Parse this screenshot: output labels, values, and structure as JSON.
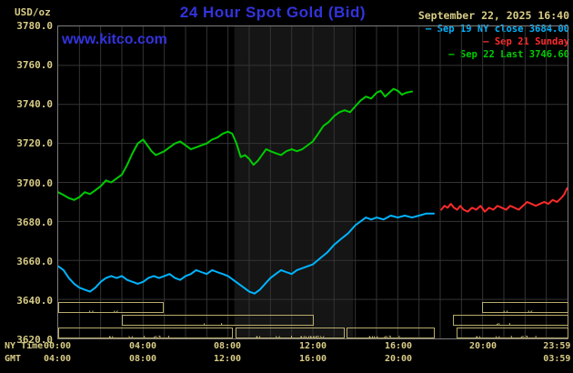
{
  "header": {
    "unit_label": "USD/oz",
    "title": "24 Hour Spot Gold (Bid)",
    "datetime": "September 22, 2025 16:40",
    "watermark": "www.kitco.com"
  },
  "legend": {
    "items": [
      {
        "label": "Sep 19 NY close 3684.00",
        "color": "#00b4ff"
      },
      {
        "label": "Sep 21 Sunday",
        "color": "#ff2b2b"
      },
      {
        "label": "Sep 22 Last 3746.60",
        "color": "#00cc00"
      }
    ]
  },
  "axes": {
    "ny_time_label": "NY Time",
    "gmt_label": "GMT",
    "y_labels": [
      "3780.0",
      "3760.0",
      "3740.0",
      "3720.0",
      "3700.0",
      "3680.0",
      "3660.0",
      "3640.0",
      "3620.0"
    ],
    "tick_hours": [
      0,
      4,
      8,
      12,
      16,
      20,
      23.983
    ],
    "ny_ticks": [
      "00:00",
      "04:00",
      "08:00",
      "12:00",
      "16:00",
      "20:00",
      "23:59"
    ],
    "gmt_ticks": [
      "04:00",
      "08:00",
      "12:00",
      "16:00",
      "20:00",
      "",
      "03:59"
    ]
  },
  "sessions": [
    {
      "row": 0,
      "label": "Hong Kong",
      "start": 0,
      "end": 5.0
    },
    {
      "row": 0,
      "label": "Hong Kong",
      "start": 19.9,
      "end": 24
    },
    {
      "row": 1,
      "label": "London",
      "start": 3.0,
      "end": 12.05
    },
    {
      "row": 1,
      "label": "Sydney",
      "start": 18.55,
      "end": 24
    },
    {
      "row": 2,
      "label": "New York Globex",
      "start": 0,
      "end": 8.25
    },
    {
      "row": 2,
      "label": "New York NYMEX",
      "start": 8.33,
      "end": 13.5
    },
    {
      "row": 2,
      "label": "NY Globex",
      "start": 13.55,
      "end": 17.75
    },
    {
      "row": 2,
      "label": "New York Globex",
      "start": 18.7,
      "end": 24
    }
  ],
  "colors": {
    "background": "#000000",
    "title_blue": "#3333dd",
    "axis_tan": "#d8cc86",
    "tan_dim": "#b8ab6a",
    "grid": "#343434",
    "plot_border": "#7d7d7d",
    "band": "#151515"
  },
  "chart_data": {
    "type": "line",
    "title": "24 Hour Spot Gold (Bid)",
    "ylabel": "USD/oz",
    "ylim": [
      3620,
      3780
    ],
    "xlim_hours": [
      0,
      24
    ],
    "grid": true,
    "legend_position": "top-right",
    "nymex_band_hours": [
      8.3,
      13.9
    ],
    "series": [
      {
        "name": "Sep 19 NY close",
        "close_value": 3684.0,
        "color": "#00b4ff",
        "points": [
          [
            0,
            3657
          ],
          [
            0.25,
            3655
          ],
          [
            0.5,
            3651
          ],
          [
            0.75,
            3648
          ],
          [
            1,
            3646
          ],
          [
            1.25,
            3645
          ],
          [
            1.5,
            3644
          ],
          [
            1.75,
            3646
          ],
          [
            2,
            3649
          ],
          [
            2.25,
            3651
          ],
          [
            2.5,
            3652
          ],
          [
            2.75,
            3651
          ],
          [
            3,
            3652
          ],
          [
            3.25,
            3650
          ],
          [
            3.5,
            3649
          ],
          [
            3.75,
            3648
          ],
          [
            4,
            3649
          ],
          [
            4.25,
            3651
          ],
          [
            4.5,
            3652
          ],
          [
            4.75,
            3651
          ],
          [
            5,
            3652
          ],
          [
            5.25,
            3653
          ],
          [
            5.5,
            3651
          ],
          [
            5.75,
            3650
          ],
          [
            6,
            3652
          ],
          [
            6.25,
            3653
          ],
          [
            6.5,
            3655
          ],
          [
            6.75,
            3654
          ],
          [
            7,
            3653
          ],
          [
            7.25,
            3655
          ],
          [
            7.5,
            3654
          ],
          [
            7.75,
            3653
          ],
          [
            8,
            3652
          ],
          [
            8.25,
            3650
          ],
          [
            8.5,
            3648
          ],
          [
            8.75,
            3646
          ],
          [
            9,
            3644
          ],
          [
            9.25,
            3643
          ],
          [
            9.5,
            3645
          ],
          [
            9.75,
            3648
          ],
          [
            10,
            3651
          ],
          [
            10.25,
            3653
          ],
          [
            10.5,
            3655
          ],
          [
            10.75,
            3654
          ],
          [
            11,
            3653
          ],
          [
            11.25,
            3655
          ],
          [
            11.5,
            3656
          ],
          [
            11.75,
            3657
          ],
          [
            12,
            3658
          ],
          [
            12.33,
            3661
          ],
          [
            12.67,
            3664
          ],
          [
            13,
            3668
          ],
          [
            13.33,
            3671
          ],
          [
            13.67,
            3674
          ],
          [
            14,
            3678
          ],
          [
            14.25,
            3680
          ],
          [
            14.5,
            3682
          ],
          [
            14.75,
            3681
          ],
          [
            15,
            3682
          ],
          [
            15.33,
            3681
          ],
          [
            15.67,
            3683
          ],
          [
            16,
            3682
          ],
          [
            16.33,
            3683
          ],
          [
            16.67,
            3682
          ],
          [
            17,
            3683
          ],
          [
            17.33,
            3684
          ],
          [
            17.7,
            3684
          ]
        ]
      },
      {
        "name": "Sep 21 Sunday",
        "color": "#ff2b2b",
        "points": [
          [
            18.05,
            3686
          ],
          [
            18.2,
            3688
          ],
          [
            18.35,
            3687
          ],
          [
            18.5,
            3689
          ],
          [
            18.65,
            3687
          ],
          [
            18.8,
            3686
          ],
          [
            18.95,
            3688
          ],
          [
            19.1,
            3686
          ],
          [
            19.3,
            3685
          ],
          [
            19.5,
            3687
          ],
          [
            19.7,
            3686
          ],
          [
            19.9,
            3688
          ],
          [
            20.1,
            3685
          ],
          [
            20.3,
            3687
          ],
          [
            20.5,
            3686
          ],
          [
            20.7,
            3688
          ],
          [
            20.9,
            3687
          ],
          [
            21.1,
            3686
          ],
          [
            21.3,
            3688
          ],
          [
            21.5,
            3687
          ],
          [
            21.7,
            3686
          ],
          [
            21.9,
            3688
          ],
          [
            22.1,
            3690
          ],
          [
            22.3,
            3689
          ],
          [
            22.5,
            3688
          ],
          [
            22.7,
            3689
          ],
          [
            22.9,
            3690
          ],
          [
            23.1,
            3689
          ],
          [
            23.3,
            3691
          ],
          [
            23.5,
            3690
          ],
          [
            23.7,
            3692
          ],
          [
            23.85,
            3694
          ],
          [
            23.98,
            3697
          ]
        ]
      },
      {
        "name": "Sep 22 Last",
        "last_value": 3746.6,
        "color": "#00cc00",
        "points": [
          [
            0,
            3695
          ],
          [
            0.25,
            3693.5
          ],
          [
            0.5,
            3692
          ],
          [
            0.75,
            3691
          ],
          [
            1,
            3692.5
          ],
          [
            1.25,
            3695
          ],
          [
            1.5,
            3694
          ],
          [
            1.75,
            3696
          ],
          [
            2,
            3698
          ],
          [
            2.25,
            3701
          ],
          [
            2.5,
            3700
          ],
          [
            2.75,
            3702
          ],
          [
            3,
            3704
          ],
          [
            3.25,
            3709
          ],
          [
            3.5,
            3715
          ],
          [
            3.75,
            3720
          ],
          [
            4,
            3722
          ],
          [
            4.2,
            3719
          ],
          [
            4.4,
            3716
          ],
          [
            4.6,
            3714
          ],
          [
            4.8,
            3715
          ],
          [
            5,
            3716
          ],
          [
            5.25,
            3718
          ],
          [
            5.5,
            3720
          ],
          [
            5.75,
            3721
          ],
          [
            6,
            3719
          ],
          [
            6.25,
            3717
          ],
          [
            6.5,
            3718
          ],
          [
            6.75,
            3719
          ],
          [
            7,
            3720
          ],
          [
            7.25,
            3722
          ],
          [
            7.5,
            3723
          ],
          [
            7.75,
            3725
          ],
          [
            8,
            3726
          ],
          [
            8.2,
            3725
          ],
          [
            8.4,
            3720
          ],
          [
            8.6,
            3713
          ],
          [
            8.8,
            3714
          ],
          [
            9,
            3712
          ],
          [
            9.2,
            3709
          ],
          [
            9.4,
            3711
          ],
          [
            9.6,
            3714
          ],
          [
            9.8,
            3717
          ],
          [
            10,
            3716
          ],
          [
            10.25,
            3715
          ],
          [
            10.5,
            3714
          ],
          [
            10.75,
            3716
          ],
          [
            11,
            3717
          ],
          [
            11.25,
            3716
          ],
          [
            11.5,
            3717
          ],
          [
            11.75,
            3719
          ],
          [
            12,
            3721
          ],
          [
            12.25,
            3725
          ],
          [
            12.5,
            3729
          ],
          [
            12.75,
            3731
          ],
          [
            13,
            3734
          ],
          [
            13.25,
            3736
          ],
          [
            13.5,
            3737
          ],
          [
            13.75,
            3736
          ],
          [
            14,
            3739
          ],
          [
            14.25,
            3742
          ],
          [
            14.5,
            3744
          ],
          [
            14.75,
            3743
          ],
          [
            15,
            3746
          ],
          [
            15.2,
            3747
          ],
          [
            15.4,
            3744
          ],
          [
            15.6,
            3746
          ],
          [
            15.8,
            3748
          ],
          [
            16,
            3747
          ],
          [
            16.2,
            3745
          ],
          [
            16.4,
            3746
          ],
          [
            16.67,
            3746.6
          ]
        ]
      }
    ]
  }
}
